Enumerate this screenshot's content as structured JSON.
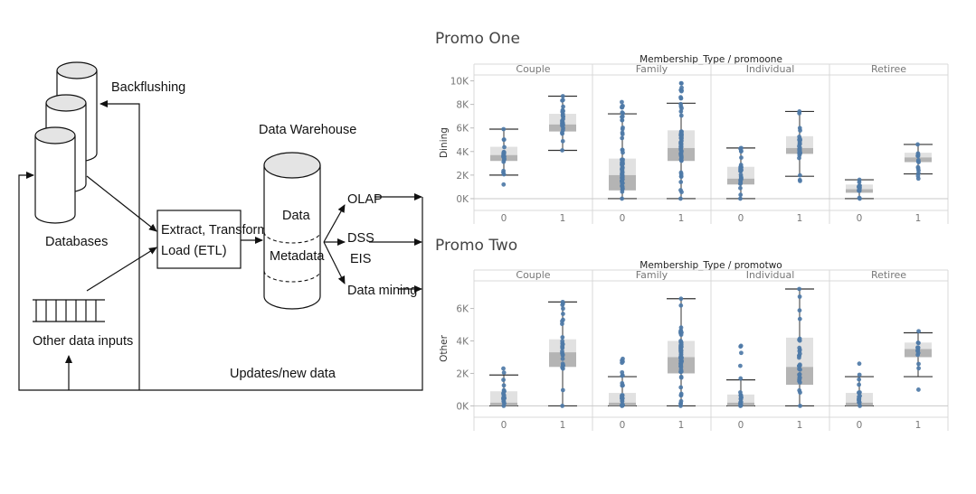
{
  "diagram": {
    "labels": {
      "backflushing": "Backflushing",
      "databases": "Databases",
      "etl_line1": "Extract, Transform,",
      "etl_line2": "Load (ETL)",
      "other_inputs": "Other data inputs",
      "data_warehouse": "Data Warehouse",
      "data": "Data",
      "metadata": "Metadata",
      "olap": "OLAP",
      "dss": "DSS",
      "eis": "EIS",
      "data_mining": "Data mining",
      "updates": "Updates/new data"
    }
  },
  "chart_data": [
    {
      "type": "boxplot",
      "title": "Promo One",
      "column_header": "Membership_Type / promoone",
      "ylabel": "Dining",
      "ylim": [
        -1000,
        10500
      ],
      "yticks": [
        0,
        2000,
        4000,
        6000,
        8000,
        10000
      ],
      "ytick_labels": [
        "0K",
        "2K",
        "4K",
        "6K",
        "8K",
        "10K"
      ],
      "facets": [
        {
          "name": "Couple",
          "boxes": [
            {
              "x": "0",
              "whisker_low": 2000,
              "q1": 3200,
              "median": 3700,
              "q3": 4400,
              "whisker_high": 5900,
              "range": [
                1200,
                5900
              ],
              "n_points": 22
            },
            {
              "x": "1",
              "whisker_low": 4100,
              "q1": 5700,
              "median": 6300,
              "q3": 7200,
              "whisker_high": 8700,
              "range": [
                4100,
                8700
              ],
              "n_points": 28
            }
          ]
        },
        {
          "name": "Family",
          "boxes": [
            {
              "x": "0",
              "whisker_low": 0,
              "q1": 700,
              "median": 2000,
              "q3": 3400,
              "whisker_high": 7200,
              "range": [
                0,
                8200
              ],
              "n_points": 60
            },
            {
              "x": "1",
              "whisker_low": 0,
              "q1": 3200,
              "median": 4300,
              "q3": 5800,
              "whisker_high": 8100,
              "range": [
                0,
                9800
              ],
              "n_points": 60
            }
          ]
        },
        {
          "name": "Individual",
          "boxes": [
            {
              "x": "0",
              "whisker_low": 0,
              "q1": 1200,
              "median": 1700,
              "q3": 2700,
              "whisker_high": 4300,
              "range": [
                0,
                4300
              ],
              "n_points": 30
            },
            {
              "x": "1",
              "whisker_low": 1900,
              "q1": 3800,
              "median": 4300,
              "q3": 5300,
              "whisker_high": 7400,
              "range": [
                1500,
                7400
              ],
              "n_points": 30
            }
          ]
        },
        {
          "name": "Retiree",
          "boxes": [
            {
              "x": "0",
              "whisker_low": 0,
              "q1": 500,
              "median": 800,
              "q3": 1200,
              "whisker_high": 1600,
              "range": [
                0,
                1600
              ],
              "n_points": 14
            },
            {
              "x": "1",
              "whisker_low": 2100,
              "q1": 3100,
              "median": 3500,
              "q3": 3900,
              "whisker_high": 4600,
              "range": [
                1700,
                4600
              ],
              "n_points": 14
            }
          ]
        }
      ]
    },
    {
      "type": "boxplot",
      "title": "Promo Two",
      "column_header": "Membership_Type / promotwo",
      "ylabel": "Other",
      "ylim": [
        -700,
        7700
      ],
      "yticks": [
        0,
        2000,
        4000,
        6000
      ],
      "ytick_labels": [
        "0K",
        "2K",
        "4K",
        "6K"
      ],
      "facets": [
        {
          "name": "Couple",
          "boxes": [
            {
              "x": "0",
              "whisker_low": 0,
              "q1": 0,
              "median": 200,
              "q3": 900,
              "whisker_high": 1900,
              "range": [
                0,
                2300
              ],
              "n_points": 22
            },
            {
              "x": "1",
              "whisker_low": 0,
              "q1": 2400,
              "median": 3300,
              "q3": 4100,
              "whisker_high": 6400,
              "range": [
                0,
                6400
              ],
              "n_points": 28
            }
          ]
        },
        {
          "name": "Family",
          "boxes": [
            {
              "x": "0",
              "whisker_low": 0,
              "q1": 0,
              "median": 200,
              "q3": 800,
              "whisker_high": 1800,
              "range": [
                0,
                2900
              ],
              "n_points": 26
            },
            {
              "x": "1",
              "whisker_low": 0,
              "q1": 2000,
              "median": 3000,
              "q3": 4000,
              "whisker_high": 6600,
              "range": [
                0,
                6600
              ],
              "n_points": 60
            }
          ]
        },
        {
          "name": "Individual",
          "boxes": [
            {
              "x": "0",
              "whisker_low": 0,
              "q1": 0,
              "median": 200,
              "q3": 700,
              "whisker_high": 1600,
              "range": [
                0,
                3700
              ],
              "n_points": 22
            },
            {
              "x": "1",
              "whisker_low": 0,
              "q1": 1300,
              "median": 2400,
              "q3": 4200,
              "whisker_high": 7200,
              "range": [
                0,
                7200
              ],
              "n_points": 32
            }
          ]
        },
        {
          "name": "Retiree",
          "boxes": [
            {
              "x": "0",
              "whisker_low": 0,
              "q1": 0,
              "median": 200,
              "q3": 800,
              "whisker_high": 1800,
              "range": [
                0,
                2600
              ],
              "n_points": 18
            },
            {
              "x": "1",
              "whisker_low": 1800,
              "q1": 3000,
              "median": 3500,
              "q3": 3900,
              "whisker_high": 4500,
              "range": [
                1000,
                4600
              ],
              "n_points": 14
            }
          ]
        }
      ]
    }
  ],
  "colors": {
    "point": "#4e79a7",
    "box_upper": "#e1e1e1",
    "box_lower": "#b4b4b4",
    "whisker": "#333333",
    "grid": "#d9d9d9"
  }
}
